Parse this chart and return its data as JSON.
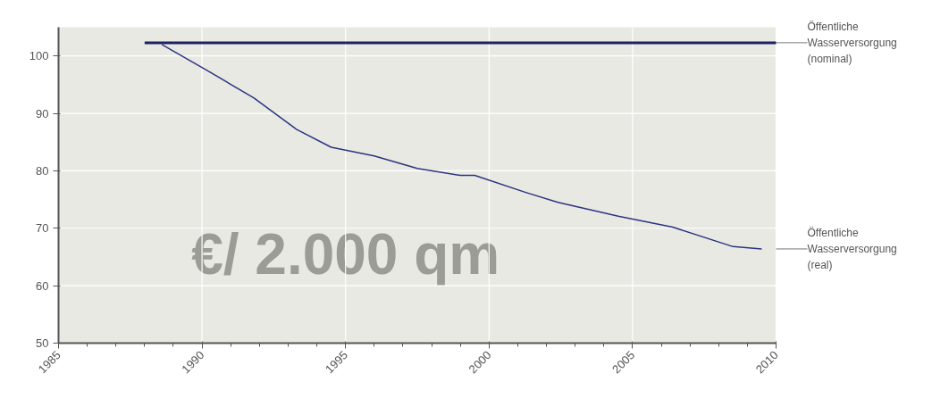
{
  "chart_data": {
    "type": "line",
    "xlim": [
      1985,
      2010
    ],
    "ylim": [
      50,
      105
    ],
    "xticks": [
      1985,
      1990,
      1995,
      2000,
      2005,
      2010
    ],
    "yticks": [
      50,
      60,
      70,
      80,
      90,
      100
    ],
    "grid": true,
    "marker": "none",
    "line_style": "solid",
    "annotations": [
      "€/ 2.000 qm"
    ],
    "series": [
      {
        "name": "Öffentliche Wasserversorgung (nominal)",
        "color": "#1c2260",
        "x": [
          1988.0,
          2010.0
        ],
        "values": [
          102.3,
          102.3
        ]
      },
      {
        "name": "Öffentliche Wasserversorgung (real)",
        "color": "#2a3580",
        "x": [
          1988.6,
          1990.2,
          1991.8,
          1993.3,
          1994.5,
          1996.0,
          1997.5,
          1999.0,
          1999.5,
          2001.3,
          2002.4,
          2004.5,
          2006.4,
          2008.5,
          2009.5
        ],
        "values": [
          102.0,
          97.4,
          92.7,
          87.2,
          84.1,
          82.6,
          80.4,
          79.2,
          79.2,
          76.2,
          74.5,
          72.1,
          70.2,
          66.8,
          66.4
        ]
      }
    ]
  }
}
